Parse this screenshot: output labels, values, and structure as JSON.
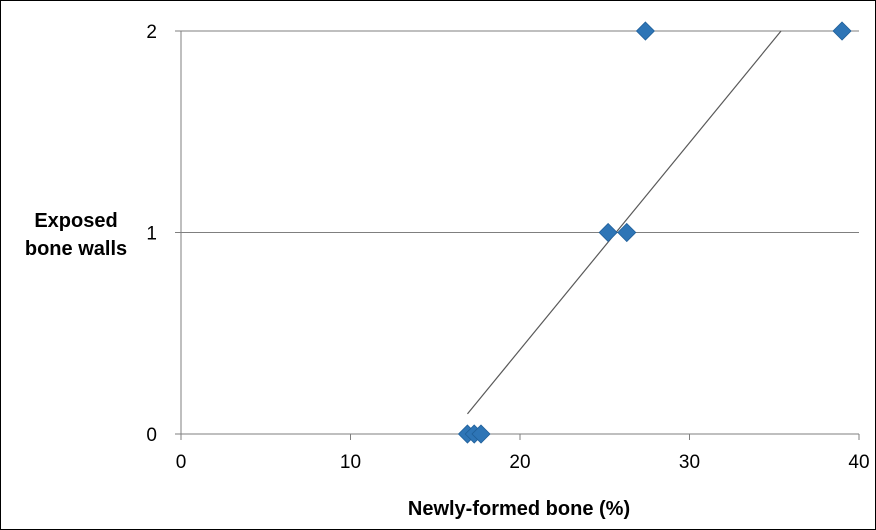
{
  "chart_data": {
    "type": "scatter",
    "title": "",
    "xlabel": "Newly-formed bone (%)",
    "ylabel_lines": [
      "Exposed",
      "bone walls"
    ],
    "xlim": [
      0,
      40
    ],
    "ylim": [
      0,
      2
    ],
    "x_ticks": [
      0,
      10,
      20,
      30,
      40
    ],
    "y_ticks": [
      0,
      1,
      2
    ],
    "x_tick_labels": [
      "0",
      "10",
      "20",
      "30",
      "40"
    ],
    "y_tick_labels": [
      "0",
      "1",
      "2"
    ],
    "grid": "horizontal",
    "legend": "none",
    "marker": "diamond",
    "marker_color": "#2E75B6",
    "trendline_color": "#595959",
    "series": [
      {
        "points": [
          {
            "x": 16.9,
            "y": 0
          },
          {
            "x": 17.3,
            "y": 0
          },
          {
            "x": 17.7,
            "y": 0
          },
          {
            "x": 25.2,
            "y": 1
          },
          {
            "x": 26.3,
            "y": 1
          },
          {
            "x": 27.4,
            "y": 2
          },
          {
            "x": 39.0,
            "y": 2
          }
        ]
      }
    ],
    "trendline": {
      "x": [
        16.9,
        35.4
      ],
      "y": [
        0.1,
        2.0
      ]
    }
  }
}
